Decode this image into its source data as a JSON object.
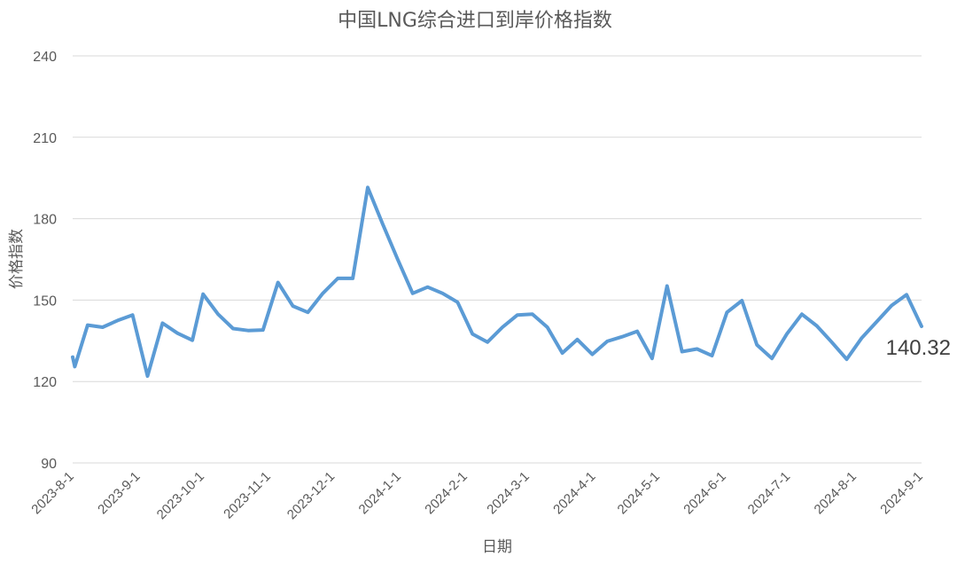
{
  "chart_data": {
    "type": "line",
    "title": "中国LNG综合进口到岸价格指数",
    "xlabel": "日期",
    "ylabel": "价格指数",
    "ylim": [
      90,
      240
    ],
    "yticks": [
      90,
      120,
      150,
      180,
      210,
      240
    ],
    "xlim": [
      "2023-08-01",
      "2024-09-01"
    ],
    "xtick_labels": [
      "2023-8-1",
      "2023-9-1",
      "2023-10-1",
      "2023-11-1",
      "2023-12-1",
      "2024-1-1",
      "2024-2-1",
      "2024-3-1",
      "2024-4-1",
      "2024-5-1",
      "2024-6-1",
      "2024-7-1",
      "2024-8-1",
      "2024-9-1"
    ],
    "grid": true,
    "legend": "none",
    "colors": {
      "series": "#5b9bd5",
      "grid": "#d9d9d9",
      "text": "#595959"
    },
    "series": [
      {
        "x": [
          "2023-08-01",
          "2023-08-02",
          "2023-08-08",
          "2023-08-15",
          "2023-08-22",
          "2023-08-29",
          "2023-09-05",
          "2023-09-12",
          "2023-09-19",
          "2023-09-26",
          "2023-10-01",
          "2023-10-08",
          "2023-10-15",
          "2023-10-22",
          "2023-10-29",
          "2023-11-05",
          "2023-11-12",
          "2023-11-19",
          "2023-11-26",
          "2023-12-03",
          "2023-12-10",
          "2023-12-17",
          "2023-12-24",
          "2023-12-31",
          "2024-01-07",
          "2024-01-14",
          "2024-01-21",
          "2024-01-28",
          "2024-02-04",
          "2024-02-11",
          "2024-02-18",
          "2024-02-25",
          "2024-03-03",
          "2024-03-10",
          "2024-03-17",
          "2024-03-24",
          "2024-03-31",
          "2024-04-07",
          "2024-04-14",
          "2024-04-21",
          "2024-04-28",
          "2024-05-05",
          "2024-05-12",
          "2024-05-19",
          "2024-05-26",
          "2024-06-02",
          "2024-06-09",
          "2024-06-16",
          "2024-06-23",
          "2024-06-30",
          "2024-07-07",
          "2024-07-14",
          "2024-07-21",
          "2024-07-28",
          "2024-08-04",
          "2024-08-11",
          "2024-08-18",
          "2024-08-25",
          "2024-09-01"
        ],
        "values": [
          129,
          125.5,
          140.8,
          140,
          142.5,
          144.5,
          122,
          141.5,
          137.8,
          135.2,
          152.2,
          144.8,
          139.5,
          138.8,
          139,
          156.5,
          147.8,
          145.5,
          152.5,
          158,
          158,
          191.5,
          178,
          165,
          152.5,
          154.8,
          152.5,
          149.2,
          137.5,
          134.5,
          140,
          144.5,
          144.8,
          140,
          130.5,
          135.5,
          130,
          134.8,
          136.5,
          138.5,
          128.5,
          155.2,
          131,
          132,
          129.5,
          145.5,
          149.8,
          133.5,
          128.5,
          137.5,
          144.8,
          140.5,
          134.5,
          128.2,
          136,
          142,
          148,
          152,
          140.32
        ]
      }
    ],
    "annotations": [
      {
        "x": "2024-09-01",
        "y": 140.32,
        "text": "140.32"
      }
    ]
  }
}
